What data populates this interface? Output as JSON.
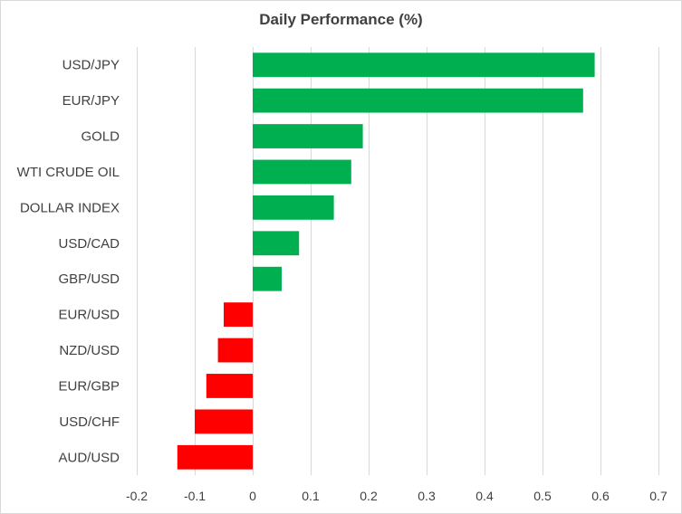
{
  "chart_data": {
    "type": "bar",
    "orientation": "horizontal",
    "title": "Daily Performance  (%)",
    "xlabel": "",
    "ylabel": "",
    "categories": [
      "USD/JPY",
      "EUR/JPY",
      "GOLD",
      "WTI CRUDE OIL",
      "DOLLAR INDEX",
      "USD/CAD",
      "GBP/USD",
      "EUR/USD",
      "NZD/USD",
      "EUR/GBP",
      "USD/CHF",
      "AUD/USD"
    ],
    "values": [
      0.59,
      0.57,
      0.19,
      0.17,
      0.14,
      0.08,
      0.05,
      -0.05,
      -0.06,
      -0.08,
      -0.1,
      -0.13
    ],
    "xlim": [
      -0.2,
      0.7
    ],
    "ticks": [
      -0.2,
      -0.1,
      0,
      0.1,
      0.2,
      0.3,
      0.4,
      0.5,
      0.6,
      0.7
    ],
    "tick_labels": [
      "-0.2",
      "-0.1",
      "0",
      "0.1",
      "0.2",
      "0.3",
      "0.4",
      "0.5",
      "0.6",
      "0.7"
    ],
    "grid": true,
    "legend": "none",
    "colors": {
      "positive": "#00b050",
      "negative": "#ff0000",
      "grid": "#d9d9d9",
      "text": "#404040"
    }
  }
}
